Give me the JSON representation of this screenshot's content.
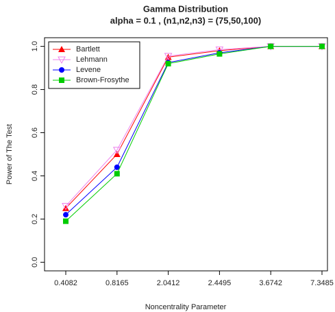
{
  "chart_data": {
    "type": "line",
    "title": "Gamma Distribution",
    "subtitle": "alpha = 0.1 , (n1,n2,n3) = (75,50,100)",
    "x_label": "Noncentrality Parameter",
    "y_label": "Power of The Test",
    "categories": [
      "0.4082",
      "0.8165",
      "2.0412",
      "2.4495",
      "3.6742",
      "7.3485"
    ],
    "series": [
      {
        "name": "Bartlett",
        "color": "#ff0000",
        "marker": "triangle",
        "values": [
          0.25,
          0.5,
          0.95,
          0.98,
          1.0,
          1.0
        ]
      },
      {
        "name": "Lehmann",
        "color": "#ee82ee",
        "marker": "open-triangle-down",
        "values": [
          0.26,
          0.52,
          0.955,
          0.985,
          1.0,
          1.0
        ]
      },
      {
        "name": "Levene",
        "color": "#0000ff",
        "marker": "circle",
        "values": [
          0.22,
          0.44,
          0.925,
          0.97,
          1.0,
          1.0
        ]
      },
      {
        "name": "Brown-Frosythe",
        "color": "#00cc00",
        "marker": "square",
        "values": [
          0.19,
          0.41,
          0.92,
          0.965,
          1.0,
          1.0
        ]
      }
    ],
    "ylim": [
      -0.04,
      1.04
    ],
    "yticks": [
      {
        "value": 0,
        "label": "0.0"
      },
      0.2,
      0.4,
      0.6,
      0.8,
      {
        "value": 1,
        "label": "1.0"
      }
    ],
    "legend": "top-left"
  }
}
